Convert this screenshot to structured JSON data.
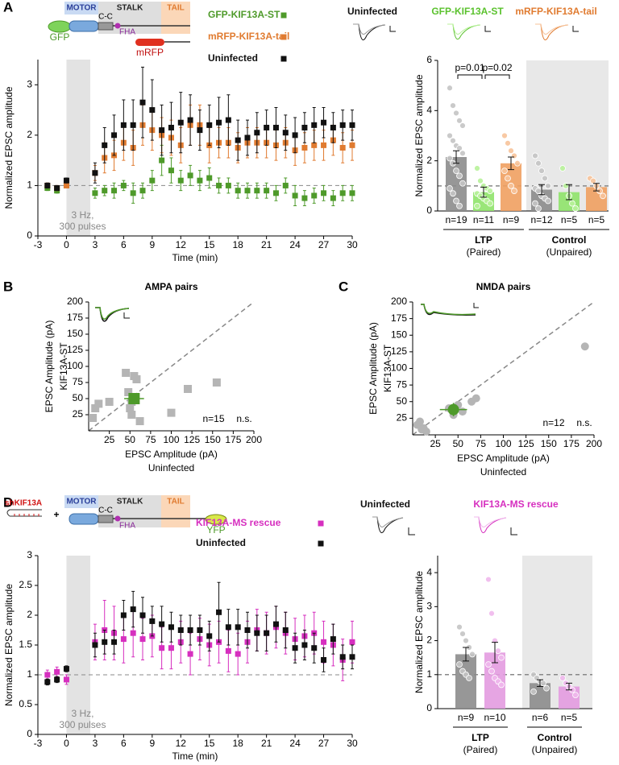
{
  "figure": {
    "panel_labels": [
      "A",
      "B",
      "C",
      "D"
    ],
    "schematic_A": {
      "domains": [
        "MOTOR",
        "STALK",
        "TAIL"
      ],
      "cc": "C-C",
      "fha": "FHA",
      "gfp": "GFP",
      "mrfp": "mRFP"
    },
    "traces_A": [
      "Uninfected",
      "GFP-KIF13A-ST",
      "mRFP-KIF13A-tail"
    ],
    "schematic_D": {
      "sh": "shKIF13A",
      "plus": "+",
      "domains": [
        "MOTOR",
        "STALK",
        "TAIL"
      ],
      "cc": "C-C",
      "fha": "FHA",
      "yfp": "YFP"
    },
    "traces_D": [
      "Uninfected",
      "KIF13A-MS rescue"
    ]
  },
  "chart_data": [
    {
      "type": "errorbar",
      "xlabel": "Time (min)",
      "ylabel": "Normalized EPSC amplitude",
      "x": [
        -2,
        -1,
        0,
        3,
        4,
        5,
        6,
        7,
        8,
        9,
        10,
        11,
        12,
        13,
        14,
        15,
        16,
        17,
        18,
        19,
        20,
        21,
        22,
        23,
        24,
        25,
        26,
        27,
        28,
        29,
        30
      ],
      "series": [
        {
          "name": "GFP-KIF13A-ST",
          "color": "#4e9a2a",
          "values": [
            0.95,
            0.9,
            1.0,
            0.85,
            0.9,
            0.9,
            1.0,
            0.85,
            0.9,
            1.1,
            1.5,
            1.3,
            1.1,
            1.2,
            1.1,
            1.15,
            1.0,
            1.0,
            0.9,
            0.9,
            0.9,
            0.9,
            0.85,
            1.0,
            0.8,
            0.75,
            0.8,
            0.85,
            0.75,
            0.85,
            0.85
          ],
          "errors": [
            0.05,
            0.05,
            0.05,
            0.1,
            0.1,
            0.15,
            0.1,
            0.2,
            0.15,
            0.2,
            0.3,
            0.25,
            0.2,
            0.2,
            0.2,
            0.2,
            0.15,
            0.15,
            0.15,
            0.15,
            0.15,
            0.15,
            0.15,
            0.15,
            0.2,
            0.15,
            0.15,
            0.15,
            0.15,
            0.15,
            0.15
          ]
        },
        {
          "name": "mRFP-KIF13A-tail",
          "color": "#e07b30",
          "values": [
            1.0,
            0.95,
            1.0,
            1.25,
            1.55,
            1.6,
            1.85,
            1.75,
            2.2,
            2.1,
            2.0,
            1.95,
            1.8,
            2.2,
            2.2,
            1.8,
            1.85,
            1.85,
            1.75,
            1.85,
            1.85,
            1.85,
            1.8,
            1.85,
            1.7,
            1.75,
            1.8,
            1.8,
            1.9,
            1.75,
            1.8
          ],
          "errors": [
            0.05,
            0.05,
            0.05,
            0.15,
            0.3,
            0.3,
            0.35,
            0.35,
            0.4,
            0.4,
            0.35,
            0.35,
            0.35,
            0.4,
            0.4,
            0.35,
            0.3,
            0.3,
            0.3,
            0.3,
            0.3,
            0.3,
            0.3,
            0.3,
            0.3,
            0.3,
            0.3,
            0.3,
            0.3,
            0.3,
            0.3
          ]
        },
        {
          "name": "Uninfected",
          "color": "#111111",
          "values": [
            1.0,
            0.95,
            1.1,
            1.25,
            1.8,
            2.0,
            2.2,
            2.2,
            2.65,
            2.5,
            2.1,
            2.15,
            2.25,
            2.3,
            2.1,
            2.2,
            2.25,
            2.3,
            1.9,
            1.95,
            2.05,
            2.15,
            2.15,
            2.05,
            2.0,
            2.15,
            2.2,
            2.25,
            2.15,
            2.2,
            2.2
          ],
          "errors": [
            0.05,
            0.05,
            0.05,
            0.2,
            0.35,
            0.4,
            0.5,
            0.5,
            0.7,
            0.6,
            0.5,
            0.5,
            0.6,
            0.5,
            0.4,
            0.4,
            0.5,
            0.5,
            0.4,
            0.35,
            0.4,
            0.35,
            0.4,
            0.35,
            0.35,
            0.3,
            0.35,
            0.3,
            0.3,
            0.3,
            0.3
          ]
        }
      ],
      "xlim": [
        -3,
        30
      ],
      "ylim": [
        0,
        3.5
      ],
      "xticks": [
        -3,
        0,
        3,
        6,
        9,
        12,
        15,
        18,
        21,
        24,
        27,
        30
      ],
      "yticks": [
        0,
        1,
        2,
        3
      ],
      "hline": 1,
      "shaded_x": [
        0,
        2.5
      ],
      "annotation": [
        "3 Hz,",
        "300 pulses"
      ]
    },
    {
      "type": "bar",
      "ylabel": "Normalized EPSC amplitude",
      "categories": [
        "n=19",
        "n=11",
        "n=9",
        "n=12",
        "n=5",
        "n=5"
      ],
      "values": [
        2.15,
        0.75,
        1.9,
        0.85,
        0.75,
        0.95
      ],
      "errors": [
        0.25,
        0.2,
        0.25,
        0.2,
        0.3,
        0.15
      ],
      "colors": [
        "#8c8c8c",
        "#8fe36a",
        "#f0a060",
        "#8c8c8c",
        "#8fe36a",
        "#f0a060"
      ],
      "point_colors": [
        "#c4c4c4",
        "#b8f29a",
        "#f7c39a",
        "#c4c4c4",
        "#b8f29a",
        "#f7c39a"
      ],
      "points": [
        [
          4.9,
          4.2,
          3.9,
          3.6,
          3.4,
          3.0,
          2.8,
          2.6,
          2.5,
          2.3,
          2.1,
          1.9,
          1.6,
          1.4,
          1.1,
          0.9,
          0.7,
          0.4,
          0.2
        ],
        [
          1.7,
          1.2,
          1.0,
          0.9,
          0.8,
          0.7,
          0.6,
          0.5,
          0.4,
          0.3,
          0.2
        ],
        [
          3.0,
          2.7,
          2.4,
          2.2,
          1.9,
          1.6,
          1.3,
          1.0,
          0.8
        ],
        [
          2.2,
          1.9,
          1.6,
          1.3,
          1.0,
          0.9,
          0.8,
          0.6,
          0.5,
          0.4,
          0.3,
          0.1
        ],
        [
          1.7,
          1.0,
          0.6,
          0.3,
          0.1
        ],
        [
          1.3,
          1.2,
          1.0,
          0.8,
          0.6
        ]
      ],
      "groups": [
        {
          "label": "LTP",
          "sublabel": "(Paired)",
          "members": [
            0,
            1,
            2
          ],
          "shaded": false
        },
        {
          "label": "Control",
          "sublabel": "(Unpaired)",
          "members": [
            3,
            4,
            5
          ],
          "shaded": true
        }
      ],
      "comparisons": [
        {
          "pair": [
            0,
            1
          ],
          "label": "p=0.01"
        },
        {
          "pair": [
            1,
            2
          ],
          "label": "p=0.02"
        }
      ],
      "ylim": [
        0,
        6
      ],
      "yticks": [
        0,
        2,
        4,
        6
      ],
      "hline": 1
    },
    {
      "type": "scatter",
      "title": "AMPA pairs",
      "xlabel": [
        "EPSC Amplitude (pA)",
        "Uninfected"
      ],
      "ylabel": [
        "EPSC Amplitude (pA)",
        "KIF13A-ST"
      ],
      "marker": "square",
      "color": "#b5b5b5",
      "x": [
        5,
        8,
        12,
        25,
        45,
        48,
        52,
        50,
        52,
        55,
        58,
        62,
        100,
        120,
        155
      ],
      "values": [
        20,
        35,
        42,
        45,
        90,
        60,
        45,
        35,
        25,
        85,
        80,
        15,
        28,
        65,
        75
      ],
      "mean": {
        "x": 55,
        "y": 50,
        "xerr": 12,
        "yerr": 8,
        "color": "#4e9a2a"
      },
      "xlim": [
        0,
        200
      ],
      "ylim": [
        0,
        200
      ],
      "xticks": [
        25,
        50,
        75,
        100,
        125,
        150,
        175,
        200
      ],
      "yticks": [
        25,
        50,
        75,
        100,
        125,
        150,
        175,
        200
      ],
      "diagonal": true,
      "annotations": [
        "n=15",
        "n.s."
      ]
    },
    {
      "type": "scatter",
      "title": "NMDA pairs",
      "xlabel": [
        "EPSC Amplitude (pA)",
        "Uninfected"
      ],
      "ylabel": [
        "EPSC Amplitude (pA)",
        "KIF13A-ST"
      ],
      "marker": "circle",
      "color": "#b5b5b5",
      "x": [
        5,
        8,
        12,
        15,
        10,
        40,
        45,
        50,
        55,
        65,
        70,
        190
      ],
      "values": [
        15,
        20,
        10,
        5,
        8,
        40,
        30,
        45,
        35,
        50,
        55,
        133
      ],
      "mean": {
        "x": 45,
        "y": 38,
        "xerr": 15,
        "yerr": 10,
        "color": "#4e9a2a"
      },
      "xlim": [
        0,
        200
      ],
      "ylim": [
        0,
        200
      ],
      "xticks": [
        25,
        50,
        75,
        100,
        125,
        150,
        175,
        200
      ],
      "yticks": [
        25,
        50,
        75,
        100,
        125,
        150,
        175,
        200
      ],
      "diagonal": true,
      "annotations": [
        "n=12",
        "n.s."
      ]
    },
    {
      "type": "errorbar",
      "xlabel": "Time (min)",
      "ylabel": "Normalized EPSC amplitude",
      "x": [
        -2,
        -1,
        0,
        3,
        4,
        5,
        6,
        7,
        8,
        9,
        10,
        11,
        12,
        13,
        14,
        15,
        16,
        17,
        18,
        19,
        20,
        21,
        22,
        23,
        24,
        25,
        26,
        27,
        28,
        29,
        30
      ],
      "series": [
        {
          "name": "KIF13A-MS rescue",
          "color": "#d62fbf",
          "values": [
            1.0,
            1.05,
            0.92,
            1.55,
            1.75,
            1.7,
            1.6,
            1.7,
            1.6,
            1.65,
            1.45,
            1.45,
            1.55,
            1.35,
            1.6,
            1.5,
            1.55,
            1.4,
            1.35,
            1.55,
            1.75,
            1.7,
            1.8,
            1.7,
            1.6,
            1.65,
            1.7,
            1.55,
            1.5,
            1.25,
            1.55
          ],
          "errors": [
            0.08,
            0.08,
            0.08,
            0.3,
            0.5,
            0.45,
            0.4,
            0.4,
            0.35,
            0.35,
            0.35,
            0.35,
            0.35,
            0.35,
            0.35,
            0.35,
            0.35,
            0.35,
            0.35,
            0.35,
            0.35,
            0.35,
            0.35,
            0.35,
            0.35,
            0.35,
            0.35,
            0.35,
            0.35,
            0.35,
            0.35
          ]
        },
        {
          "name": "Uninfected",
          "color": "#111111",
          "values": [
            0.88,
            0.92,
            1.1,
            1.5,
            1.55,
            1.55,
            2.0,
            2.1,
            2.0,
            1.9,
            1.85,
            1.8,
            1.75,
            1.75,
            1.75,
            1.65,
            2.05,
            1.8,
            1.8,
            1.75,
            1.7,
            1.7,
            1.85,
            1.75,
            1.45,
            1.5,
            1.45,
            1.25,
            1.6,
            1.3,
            1.3
          ],
          "errors": [
            0.05,
            0.05,
            0.05,
            0.2,
            0.2,
            0.2,
            0.25,
            0.3,
            0.3,
            0.25,
            0.3,
            0.25,
            0.25,
            0.25,
            0.25,
            0.25,
            0.5,
            0.3,
            0.3,
            0.3,
            0.3,
            0.3,
            0.3,
            0.3,
            0.25,
            0.25,
            0.25,
            0.2,
            0.25,
            0.2,
            0.2
          ]
        }
      ],
      "xlim": [
        -3,
        30
      ],
      "ylim": [
        0,
        3
      ],
      "xticks": [
        -3,
        0,
        3,
        6,
        9,
        12,
        15,
        18,
        21,
        24,
        27,
        30
      ],
      "yticks": [
        0,
        0.5,
        1,
        1.5,
        2,
        2.5,
        3
      ],
      "hline": 1,
      "shaded_x": [
        0,
        2.5
      ],
      "annotation": [
        "3 Hz,",
        "300 pulses"
      ]
    },
    {
      "type": "bar",
      "ylabel": "Normalized EPSC amplitude",
      "categories": [
        "n=9",
        "n=10",
        "n=6",
        "n=5"
      ],
      "values": [
        1.6,
        1.65,
        0.75,
        0.65
      ],
      "errors": [
        0.2,
        0.3,
        0.1,
        0.1
      ],
      "colors": [
        "#8c8c8c",
        "#e39be0",
        "#8c8c8c",
        "#e39be0"
      ],
      "point_colors": [
        "#c4c4c4",
        "#f0b8ec",
        "#c4c4c4",
        "#f0b8ec"
      ],
      "points": [
        [
          2.4,
          2.2,
          2.0,
          1.8,
          1.6,
          1.3,
          1.1,
          1.0,
          0.9
        ],
        [
          3.8,
          2.8,
          2.0,
          1.7,
          1.5,
          1.3,
          1.1,
          0.9,
          0.8,
          0.7
        ],
        [
          1.0,
          0.9,
          0.8,
          0.75,
          0.6,
          0.5
        ],
        [
          0.9,
          0.75,
          0.65,
          0.55,
          0.4
        ]
      ],
      "groups": [
        {
          "label": "LTP",
          "sublabel": "(Paired)",
          "members": [
            0,
            1
          ],
          "shaded": false
        },
        {
          "label": "Control",
          "sublabel": "(Unpaired)",
          "members": [
            2,
            3
          ],
          "shaded": true
        }
      ],
      "ylim": [
        0,
        4.5
      ],
      "yticks": [
        0,
        1,
        2,
        3,
        4
      ],
      "hline": 1
    }
  ]
}
